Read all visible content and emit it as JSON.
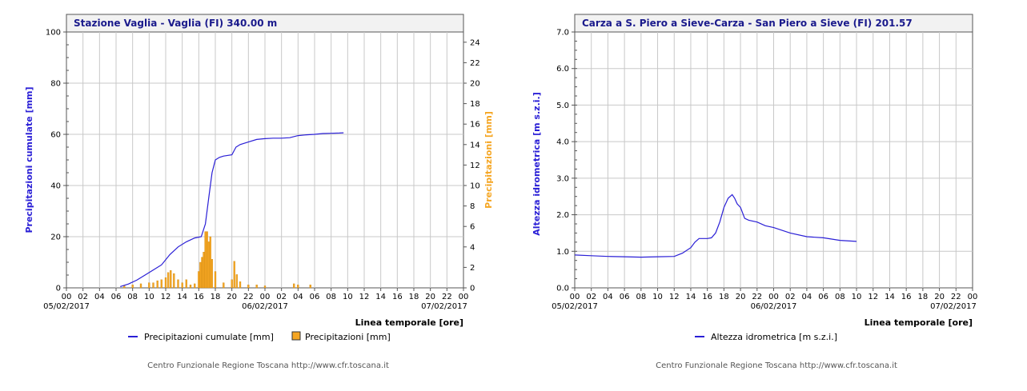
{
  "footer_text": "Centro Funzionale Regione Toscana http://www.cfr.toscana.it",
  "chart_data": [
    {
      "type": "line+bar",
      "title": "Stazione Vaglia - Vaglia (FI) 340.00 m",
      "xlabel": "Linea temporale [ore]",
      "ylabel": "Precipitazioni cumulate [mm]",
      "ylabel_right": "Precipitazioni [mm]",
      "ylim": [
        0,
        100
      ],
      "ylim_right": [
        0,
        25
      ],
      "yticks": [
        "0",
        "20",
        "40",
        "60",
        "80",
        "100"
      ],
      "yticks_right": [
        "0",
        "2",
        "4",
        "6",
        "8",
        "10",
        "12",
        "14",
        "16",
        "18",
        "20",
        "22",
        "24"
      ],
      "hour_ticks": [
        "00",
        "02",
        "04",
        "06",
        "08",
        "10",
        "12",
        "14",
        "16",
        "18",
        "20",
        "22",
        "00",
        "02",
        "04",
        "06",
        "08",
        "10",
        "12",
        "14",
        "16",
        "18",
        "20",
        "22",
        "00"
      ],
      "date_ticks": [
        "05/02/2017",
        "06/02/2017",
        "07/02/2017"
      ],
      "grid": true,
      "legend": "bottom",
      "colors": {
        "line": "#2a1fd6",
        "bars": "#f5a623",
        "bar_outline": "#c47d00",
        "left_axis_label": "#2a1fd6",
        "right_axis_label": "#f5a623"
      },
      "series": [
        {
          "name": "Precipitazioni cumulate [mm]",
          "kind": "line",
          "x_hours": [
            6.5,
            7.5,
            8.5,
            9.5,
            10.5,
            11.5,
            12.5,
            13.5,
            14.5,
            15.5,
            16.3,
            16.8,
            17.2,
            17.6,
            18.0,
            18.5,
            19.0,
            20.0,
            20.5,
            21.0,
            22.0,
            23.0,
            24.0,
            25.0,
            26.0,
            27.0,
            28.0,
            29.0,
            30.0,
            31.0,
            32.0,
            33.0,
            33.5
          ],
          "y": [
            0.5,
            1.5,
            3,
            5,
            7,
            9,
            13,
            16,
            18,
            19.5,
            20,
            25,
            35,
            45,
            50,
            51,
            51.5,
            52,
            55,
            56,
            57,
            58,
            58.3,
            58.5,
            58.5,
            58.7,
            59.5,
            59.8,
            60,
            60.3,
            60.4,
            60.5,
            60.6
          ]
        },
        {
          "name": "Precipitazioni [mm]",
          "kind": "bar",
          "x_hours": [
            7,
            8,
            9,
            10,
            10.5,
            11,
            11.5,
            12,
            12.3,
            12.6,
            13,
            13.5,
            14,
            14.5,
            15,
            15.5,
            16,
            16.2,
            16.4,
            16.6,
            16.8,
            17,
            17.2,
            17.4,
            17.6,
            18,
            19,
            20,
            20.3,
            20.6,
            21,
            22,
            23,
            24,
            27.5,
            28,
            29.5
          ],
          "values": [
            0.2,
            0.3,
            0.4,
            0.5,
            0.5,
            0.7,
            0.8,
            1,
            1.5,
            1.7,
            1.4,
            0.8,
            0.5,
            0.8,
            0.3,
            0.4,
            1.6,
            2.5,
            3,
            3.5,
            5.5,
            5.5,
            4.5,
            5,
            2.8,
            1.6,
            0.5,
            0.8,
            2.6,
            1.3,
            0.6,
            0.3,
            0.3,
            0.2,
            0.4,
            0.3,
            0.3
          ]
        }
      ]
    },
    {
      "type": "line",
      "title": "Carza a S. Piero a Sieve-Carza - San Piero a Sieve (FI) 201.57",
      "xlabel": "Linea temporale [ore]",
      "ylabel": "Altezza idrometrica [m s.z.i.]",
      "ylim": [
        0,
        7
      ],
      "yticks": [
        "0.0",
        "1.0",
        "2.0",
        "3.0",
        "4.0",
        "5.0",
        "6.0",
        "7.0"
      ],
      "hour_ticks": [
        "00",
        "02",
        "04",
        "06",
        "08",
        "10",
        "12",
        "14",
        "16",
        "18",
        "20",
        "22",
        "00",
        "02",
        "04",
        "06",
        "08",
        "10",
        "12",
        "14",
        "16",
        "18",
        "20",
        "22",
        "00"
      ],
      "date_ticks": [
        "05/02/2017",
        "06/02/2017",
        "07/02/2017"
      ],
      "grid": true,
      "legend": "bottom",
      "colors": {
        "line": "#2a1fd6",
        "left_axis_label": "#2a1fd6"
      },
      "series": [
        {
          "name": "Altezza idrometrica [m s.z.i.]",
          "kind": "line",
          "x_hours": [
            0,
            2,
            4,
            6,
            8,
            10,
            12,
            13,
            14,
            14.5,
            15,
            16,
            16.5,
            17,
            17.5,
            18,
            18.5,
            19,
            19.3,
            19.6,
            20,
            20.5,
            21,
            22,
            23,
            24,
            26,
            28,
            30,
            32,
            34
          ],
          "y": [
            0.9,
            0.88,
            0.86,
            0.85,
            0.84,
            0.85,
            0.86,
            0.95,
            1.1,
            1.25,
            1.35,
            1.35,
            1.37,
            1.5,
            1.8,
            2.2,
            2.45,
            2.55,
            2.45,
            2.3,
            2.2,
            1.9,
            1.85,
            1.8,
            1.7,
            1.65,
            1.5,
            1.4,
            1.37,
            1.3,
            1.27
          ]
        }
      ]
    }
  ]
}
